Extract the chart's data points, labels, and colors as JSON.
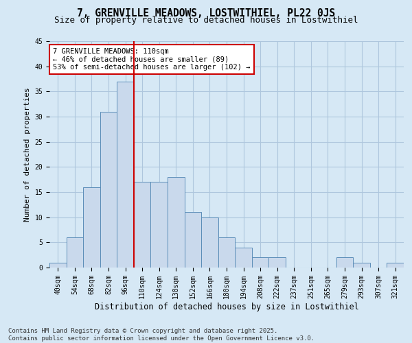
{
  "title1": "7, GRENVILLE MEADOWS, LOSTWITHIEL, PL22 0JS",
  "title2": "Size of property relative to detached houses in Lostwithiel",
  "xlabel": "Distribution of detached houses by size in Lostwithiel",
  "ylabel": "Number of detached properties",
  "categories": [
    "40sqm",
    "54sqm",
    "68sqm",
    "82sqm",
    "96sqm",
    "110sqm",
    "124sqm",
    "138sqm",
    "152sqm",
    "166sqm",
    "180sqm",
    "194sqm",
    "208sqm",
    "222sqm",
    "237sqm",
    "251sqm",
    "265sqm",
    "279sqm",
    "293sqm",
    "307sqm",
    "321sqm"
  ],
  "values": [
    1,
    6,
    16,
    31,
    37,
    17,
    17,
    18,
    11,
    10,
    6,
    4,
    2,
    2,
    0,
    0,
    0,
    2,
    1,
    0,
    1
  ],
  "bar_color": "#c9d9ec",
  "bar_edge_color": "#5b8db8",
  "red_line_index": 5,
  "red_line_label": "7 GRENVILLE MEADOWS: 110sqm",
  "annotation_line2": "← 46% of detached houses are smaller (89)",
  "annotation_line3": "53% of semi-detached houses are larger (102) →",
  "annotation_box_facecolor": "#ffffff",
  "annotation_box_edge_color": "#cc0000",
  "red_line_color": "#cc0000",
  "grid_color": "#aec6dd",
  "bg_color": "#d6e8f5",
  "plot_bg_color": "#d6e8f5",
  "ylim": [
    0,
    45
  ],
  "yticks": [
    0,
    5,
    10,
    15,
    20,
    25,
    30,
    35,
    40,
    45
  ],
  "footnote1": "Contains HM Land Registry data © Crown copyright and database right 2025.",
  "footnote2": "Contains public sector information licensed under the Open Government Licence v3.0.",
  "title1_fontsize": 10.5,
  "title2_fontsize": 9,
  "xlabel_fontsize": 8.5,
  "ylabel_fontsize": 8,
  "tick_fontsize": 7,
  "annotation_fontsize": 7.5,
  "footnote_fontsize": 6.5
}
